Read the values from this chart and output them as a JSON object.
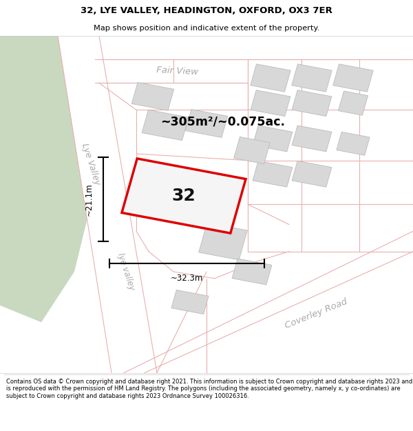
{
  "title": "32, LYE VALLEY, HEADINGTON, OXFORD, OX3 7ER",
  "subtitle": "Map shows position and indicative extent of the property.",
  "area_text": "~305m²/~0.075ac.",
  "number_text": "32",
  "dim_width": "~32.3m",
  "dim_height": "~21.1m",
  "street_fair_view": "Fair View",
  "street_lye_valley": "Lye Valley",
  "street_coverley": "Coverley Road",
  "footer": "Contains OS data © Crown copyright and database right 2021. This information is subject to Crown copyright and database rights 2023 and is reproduced with the permission of HM Land Registry. The polygons (including the associated geometry, namely x, y co-ordinates) are subject to Crown copyright and database rights 2023 Ordnance Survey 100026316.",
  "bg_map": "#eeeeee",
  "green_color": "#c8d9c0",
  "road_fill": "#ffffff",
  "road_pink": "#e8b0b0",
  "building_fill": "#d8d8d8",
  "building_edge": "#bbbbbb",
  "plot_fill": "#f5f5f5",
  "plot_edge": "#dd0000",
  "street_color": "#aaaaaa",
  "dim_color": "#000000",
  "text_color": "#111111",
  "title_size": 9.5,
  "subtitle_size": 8.2,
  "footer_size": 6.0
}
